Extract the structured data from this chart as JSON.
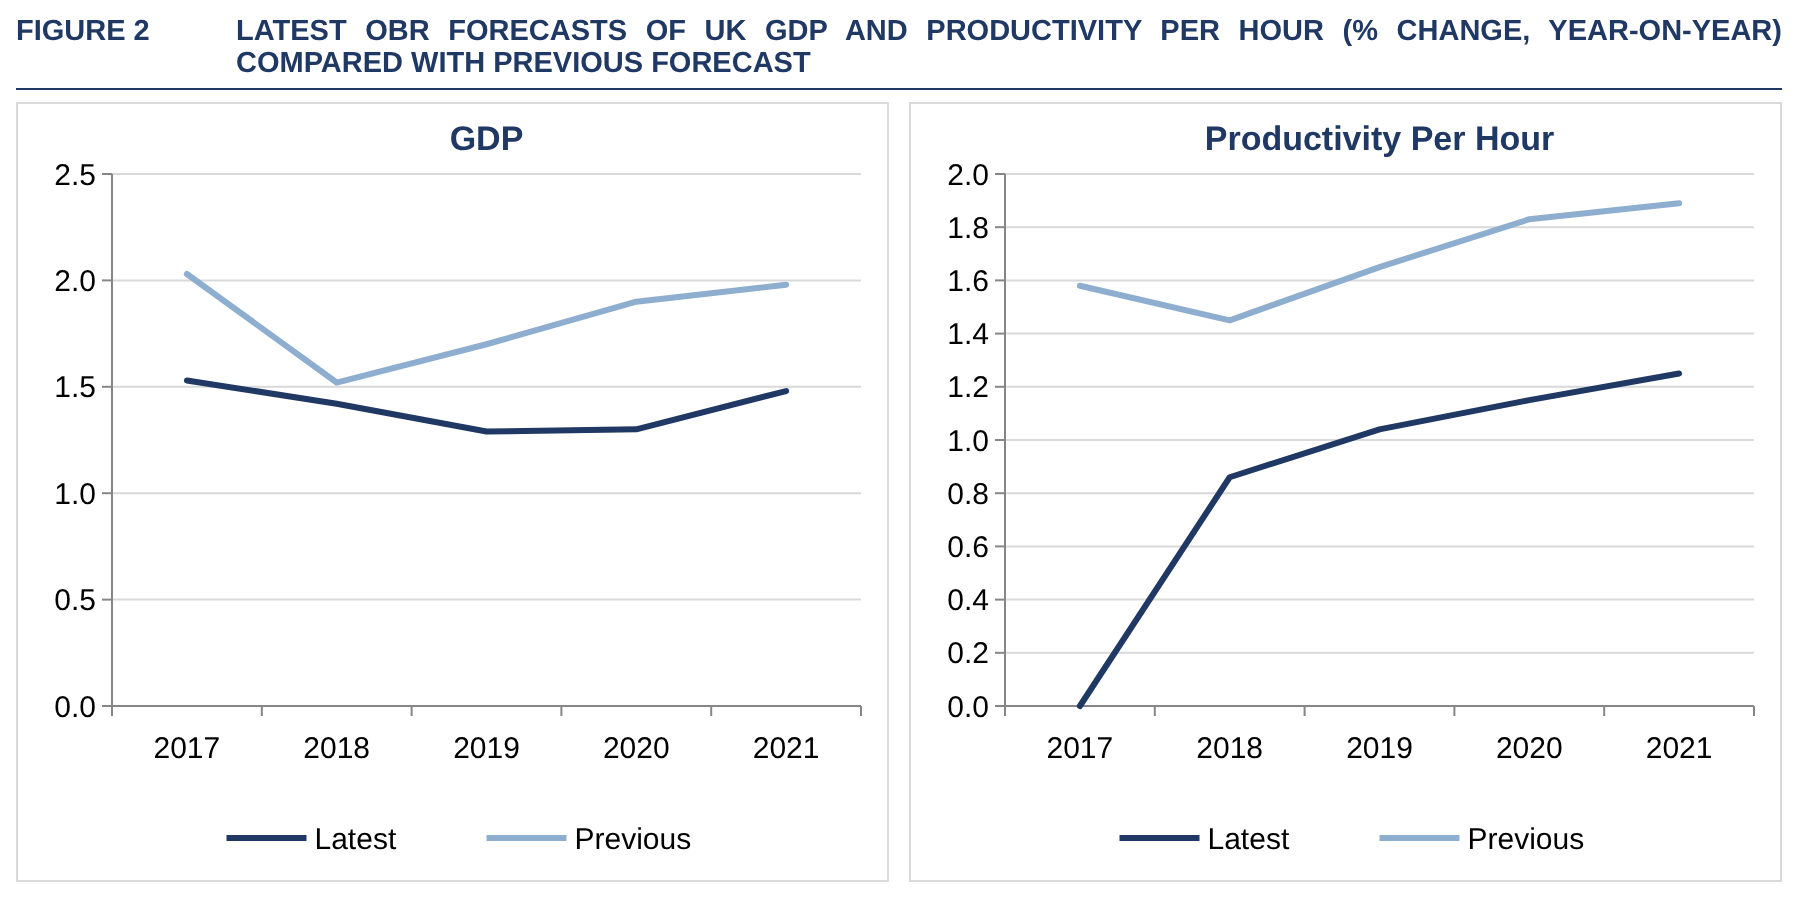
{
  "chart_data": [
    {
      "type": "other",
      "title": "LATEST OBR FORECASTS OF UK GDP AND PRODUCTIVITY PER HOUR (% CHANGE, YEAR-ON-YEAR) COMPARED WITH PREVIOUS FORECAST",
      "annotations": [
        "FIGURE 2"
      ]
    },
    {
      "type": "line",
      "title": "GDP",
      "categories": [
        "2017",
        "2018",
        "2019",
        "2020",
        "2021"
      ],
      "series": [
        {
          "name": "Latest",
          "color": "#1f3864",
          "values": [
            1.53,
            1.42,
            1.29,
            1.3,
            1.48
          ]
        },
        {
          "name": "Previous",
          "color": "#8eaed0",
          "values": [
            2.03,
            1.52,
            1.7,
            1.9,
            1.98
          ]
        }
      ],
      "ylim": [
        0,
        2.5
      ],
      "yticks": [
        {
          "value": 0,
          "label": "0.0"
        },
        {
          "value": 0.5,
          "label": "0.5"
        },
        {
          "value": 1,
          "label": "1.0"
        },
        {
          "value": 1.5,
          "label": "1.5"
        },
        {
          "value": 2,
          "label": "2.0"
        },
        {
          "value": 2.5,
          "label": "2.5"
        }
      ],
      "grid": "y",
      "legend": "bottom",
      "marker": "none",
      "line_style": "solid"
    },
    {
      "type": "line",
      "title": "Productivity Per Hour",
      "categories": [
        "2017",
        "2018",
        "2019",
        "2020",
        "2021"
      ],
      "series": [
        {
          "name": "Latest",
          "color": "#1f3864",
          "values": [
            0,
            0.86,
            1.04,
            1.15,
            1.25
          ]
        },
        {
          "name": "Previous",
          "color": "#8eaed0",
          "values": [
            1.58,
            1.45,
            1.65,
            1.83,
            1.89
          ]
        }
      ],
      "ylim": [
        0,
        2
      ],
      "yticks": [
        {
          "value": 0,
          "label": "0.0"
        },
        {
          "value": 0.2,
          "label": "0.2"
        },
        {
          "value": 0.4,
          "label": "0.4"
        },
        {
          "value": 0.6,
          "label": "0.6"
        },
        {
          "value": 0.8,
          "label": "0.8"
        },
        {
          "value": 1,
          "label": "1.0"
        },
        {
          "value": 1.2,
          "label": "1.2"
        },
        {
          "value": 1.4,
          "label": "1.4"
        },
        {
          "value": 1.6,
          "label": "1.6"
        },
        {
          "value": 1.8,
          "label": "1.8"
        },
        {
          "value": 2,
          "label": "2.0"
        }
      ],
      "grid": "y",
      "legend": "bottom",
      "marker": "none",
      "line_style": "solid"
    }
  ]
}
